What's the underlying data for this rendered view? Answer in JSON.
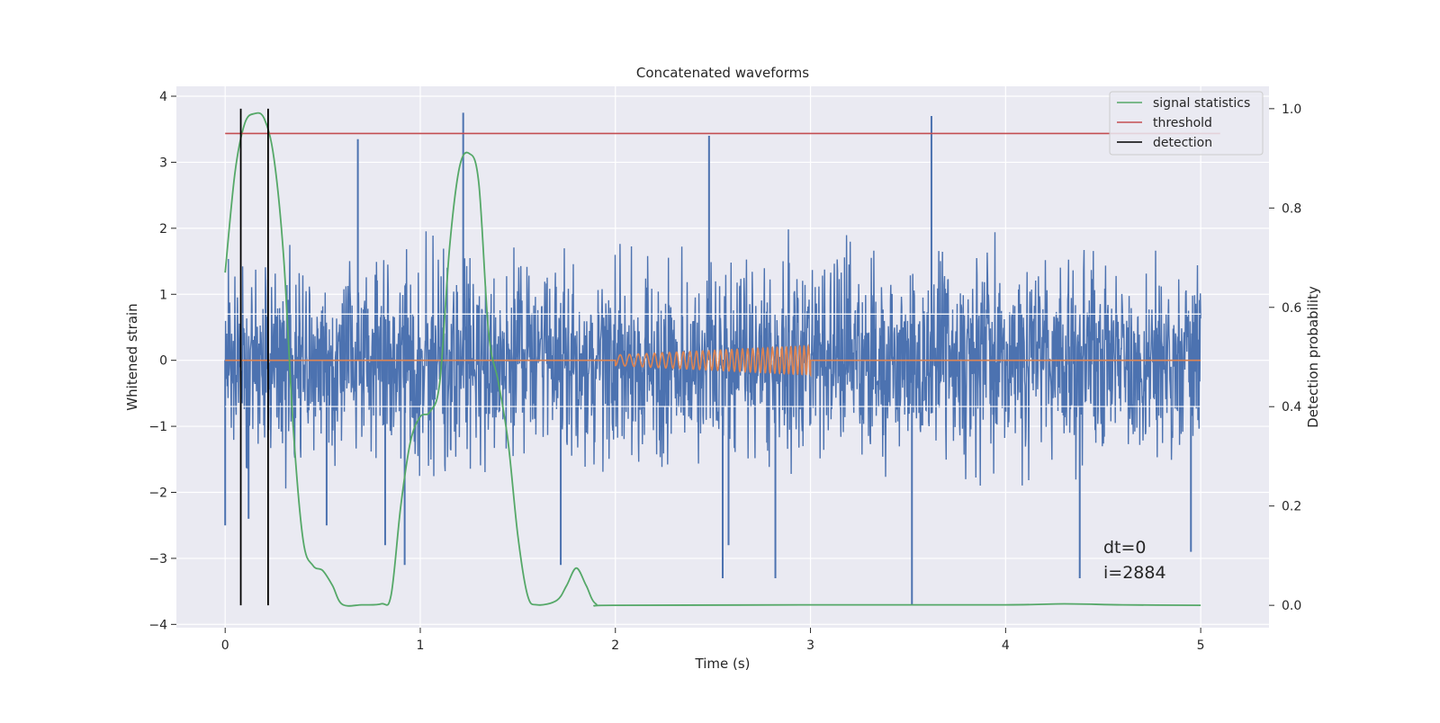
{
  "chart_data": {
    "type": "line",
    "title": "Concatenated waveforms",
    "xlabel": "Time (s)",
    "ylabel_left": "Whitened strain",
    "ylabel_right": "Detection probability",
    "xlim": [
      -0.25,
      5.35
    ],
    "ylim_left": [
      -4.05,
      4.15
    ],
    "ylim_right": [
      -0.045,
      1.045
    ],
    "x_ticks": [
      0,
      1,
      2,
      3,
      4,
      5
    ],
    "x_tick_labels": [
      "0",
      "1",
      "2",
      "3",
      "4",
      "5"
    ],
    "y_left_ticks": [
      -4,
      -3,
      -2,
      -1,
      0,
      1,
      2,
      3,
      4
    ],
    "y_left_tick_labels": [
      "−4",
      "−3",
      "−2",
      "−1",
      "0",
      "1",
      "2",
      "3",
      "4"
    ],
    "y_right_ticks": [
      0.0,
      0.2,
      0.4,
      0.6,
      0.8,
      1.0
    ],
    "y_right_tick_labels": [
      "0.0",
      "0.2",
      "0.4",
      "0.6",
      "0.8",
      "1.0"
    ],
    "grid": true,
    "legend_position": "top-right",
    "colors": {
      "background": "#eaeaf2",
      "grid": "#ffffff",
      "strain": "#4c72b0",
      "injection": "#dd8452",
      "signal_statistics": "#55a868",
      "threshold": "#c44e52",
      "detection": "#000000"
    },
    "series": [
      {
        "name": "",
        "axis": "left",
        "kind": "noise",
        "x_range": [
          0,
          5
        ],
        "typical_amplitude": 0.7,
        "envelope_max": 2.3,
        "spikes": [
          {
            "x": 0.0,
            "y": -2.5
          },
          {
            "x": 0.12,
            "y": -2.4
          },
          {
            "x": 0.52,
            "y": -2.5
          },
          {
            "x": 0.82,
            "y": -2.8
          },
          {
            "x": 0.92,
            "y": -3.1
          },
          {
            "x": 1.22,
            "y": 3.75
          },
          {
            "x": 1.72,
            "y": -3.1
          },
          {
            "x": 2.48,
            "y": 3.4
          },
          {
            "x": 2.55,
            "y": -3.3
          },
          {
            "x": 2.82,
            "y": -3.3
          },
          {
            "x": 3.52,
            "y": -3.7
          },
          {
            "x": 3.62,
            "y": 3.7
          },
          {
            "x": 4.38,
            "y": -3.3
          },
          {
            "x": 4.95,
            "y": -2.9
          },
          {
            "x": 0.68,
            "y": 3.35
          },
          {
            "x": 2.58,
            "y": -2.8
          }
        ]
      },
      {
        "name": "",
        "axis": "left",
        "kind": "chirp",
        "x_range": [
          2.0,
          3.0
        ],
        "start_amplitude": 0.08,
        "end_amplitude": 0.22,
        "cycles": 33
      },
      {
        "name": "signal statistics",
        "axis": "right",
        "x": [
          0.0,
          0.05,
          0.1,
          0.15,
          0.2,
          0.25,
          0.3,
          0.35,
          0.4,
          0.45,
          0.5,
          0.55,
          0.6,
          0.7,
          0.8,
          0.85,
          0.9,
          0.95,
          1.0,
          1.05,
          1.1,
          1.15,
          1.2,
          1.25,
          1.3,
          1.35,
          1.4,
          1.45,
          1.5,
          1.55,
          1.6,
          1.7,
          1.75,
          1.8,
          1.85,
          1.9,
          2.0,
          3.0,
          4.0,
          4.3,
          4.6,
          5.0
        ],
        "y": [
          0.67,
          0.87,
          0.97,
          0.99,
          0.98,
          0.9,
          0.7,
          0.35,
          0.13,
          0.08,
          0.07,
          0.04,
          0.002,
          0.001,
          0.003,
          0.02,
          0.2,
          0.33,
          0.38,
          0.39,
          0.45,
          0.72,
          0.88,
          0.91,
          0.85,
          0.55,
          0.45,
          0.33,
          0.14,
          0.02,
          0.001,
          0.01,
          0.04,
          0.075,
          0.04,
          0.003,
          0.0,
          0.001,
          0.001,
          0.003,
          0.001,
          0.0
        ]
      },
      {
        "name": "threshold",
        "axis": "right",
        "x": [
          0,
          5.1
        ],
        "y": [
          0.95,
          0.95
        ]
      },
      {
        "name": "detection",
        "axis": "right",
        "kind": "vlines",
        "x": [
          0.08,
          0.22
        ],
        "ymin": 0.0,
        "ymax": 1.0
      }
    ],
    "annotations": [
      {
        "text": "dt=0",
        "x": 4.5,
        "y": -2.85
      },
      {
        "text": "i=2884",
        "x": 4.5,
        "y": -3.25
      }
    ]
  }
}
